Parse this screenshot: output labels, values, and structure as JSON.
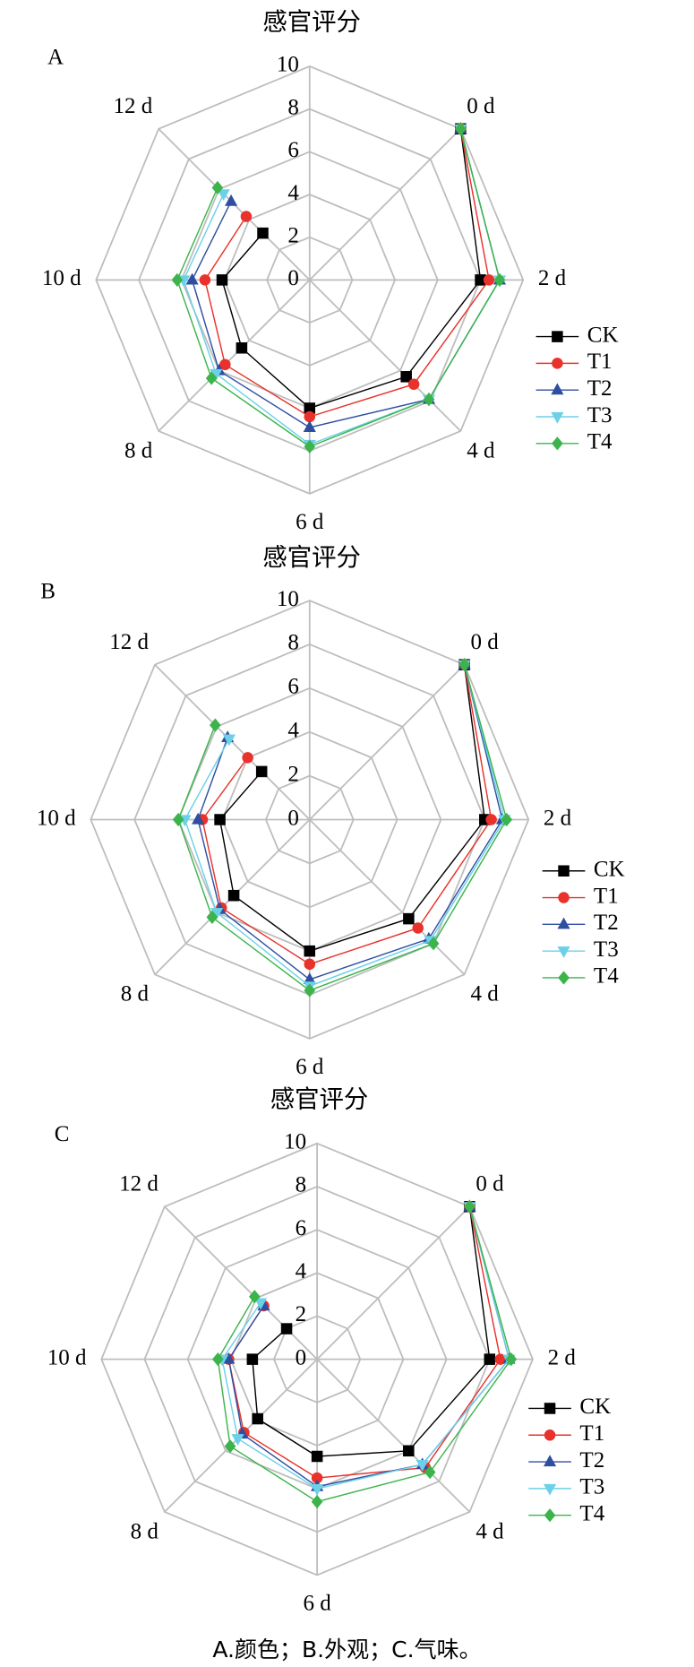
{
  "chart_data": [
    {
      "type": "radar",
      "title": "感官评分",
      "panel": "A",
      "categories": [
        null,
        "0 d",
        "2 d",
        "4 d",
        "6 d",
        "8 d",
        "10 d",
        "12 d"
      ],
      "rlim": [
        0,
        10
      ],
      "rticks": [
        0,
        2,
        4,
        6,
        8,
        10
      ],
      "grid": true,
      "legend": "right",
      "series": [
        {
          "name": "CK",
          "color": "#000000",
          "marker": "square",
          "values": [
            null,
            10,
            8.0,
            6.4,
            6.0,
            4.5,
            4.1,
            3.1
          ]
        },
        {
          "name": "T1",
          "color": "#e8322b",
          "marker": "circle",
          "values": [
            null,
            10,
            8.4,
            6.9,
            6.4,
            5.6,
            4.9,
            4.2
          ]
        },
        {
          "name": "T2",
          "color": "#2e4fa0",
          "marker": "triangle-up",
          "values": [
            null,
            10,
            8.9,
            7.9,
            6.9,
            6.0,
            5.5,
            5.2
          ]
        },
        {
          "name": "T3",
          "color": "#6cd0e8",
          "marker": "triangle-down",
          "values": [
            null,
            10,
            8.9,
            7.9,
            7.7,
            6.2,
            5.9,
            5.7
          ]
        },
        {
          "name": "T4",
          "color": "#3cb44b",
          "marker": "diamond",
          "values": [
            null,
            10,
            8.9,
            7.9,
            7.8,
            6.5,
            6.2,
            6.1
          ]
        }
      ]
    },
    {
      "type": "radar",
      "title": "感官评分",
      "panel": "B",
      "categories": [
        null,
        "0 d",
        "2 d",
        "4 d",
        "6 d",
        "8 d",
        "10 d",
        "12 d"
      ],
      "rlim": [
        0,
        10
      ],
      "rticks": [
        0,
        2,
        4,
        6,
        8,
        10
      ],
      "grid": true,
      "legend": "right",
      "series": [
        {
          "name": "CK",
          "color": "#000000",
          "marker": "square",
          "values": [
            null,
            10,
            8.0,
            6.4,
            6.0,
            4.9,
            4.1,
            3.1
          ]
        },
        {
          "name": "T1",
          "color": "#e8322b",
          "marker": "circle",
          "values": [
            null,
            10,
            8.3,
            7.0,
            6.6,
            5.7,
            4.9,
            4.0
          ]
        },
        {
          "name": "T2",
          "color": "#2e4fa0",
          "marker": "triangle-up",
          "values": [
            null,
            10,
            8.8,
            7.7,
            7.3,
            5.8,
            5.1,
            5.3
          ]
        },
        {
          "name": "T3",
          "color": "#6cd0e8",
          "marker": "triangle-down",
          "values": [
            null,
            10,
            8.9,
            7.8,
            7.6,
            6.0,
            5.7,
            5.2
          ]
        },
        {
          "name": "T4",
          "color": "#3cb44b",
          "marker": "diamond",
          "values": [
            null,
            10,
            9.0,
            8.0,
            7.8,
            6.3,
            6.0,
            6.1
          ]
        }
      ]
    },
    {
      "type": "radar",
      "title": "感官评分",
      "panel": "C",
      "categories": [
        null,
        "0 d",
        "2 d",
        "4 d",
        "6 d",
        "8 d",
        "10 d",
        "12 d"
      ],
      "rlim": [
        0,
        10
      ],
      "rticks": [
        0,
        2,
        4,
        6,
        8,
        10
      ],
      "grid": true,
      "legend": "right",
      "series": [
        {
          "name": "CK",
          "color": "#000000",
          "marker": "square",
          "values": [
            null,
            10,
            8.0,
            6.0,
            4.5,
            3.9,
            3.0,
            2.0
          ]
        },
        {
          "name": "T1",
          "color": "#e8322b",
          "marker": "circle",
          "values": [
            null,
            10,
            8.5,
            7.1,
            5.5,
            4.8,
            4.1,
            3.5
          ]
        },
        {
          "name": "T2",
          "color": "#2e4fa0",
          "marker": "triangle-up",
          "values": [
            null,
            10,
            8.9,
            6.9,
            5.9,
            4.9,
            4.1,
            3.5
          ]
        },
        {
          "name": "T3",
          "color": "#6cd0e8",
          "marker": "triangle-down",
          "values": [
            null,
            10,
            8.9,
            6.9,
            6.0,
            5.2,
            4.4,
            3.7
          ]
        },
        {
          "name": "T4",
          "color": "#3cb44b",
          "marker": "diamond",
          "values": [
            null,
            10,
            9.0,
            7.4,
            6.6,
            5.7,
            4.6,
            4.1
          ]
        }
      ]
    }
  ],
  "caption": "A.颜色；B.外观；C.气味。"
}
